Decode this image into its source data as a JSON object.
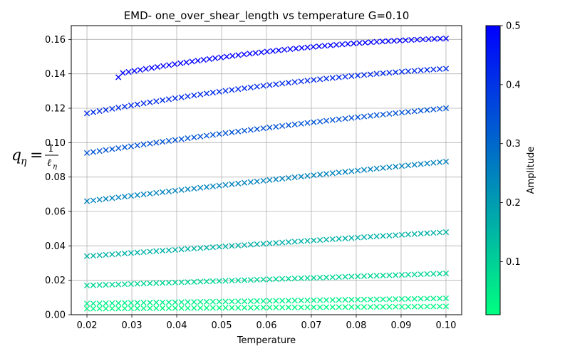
{
  "chart_data": {
    "type": "scatter",
    "title": "EMD- one_over_shear_length vs temperature G=0.10",
    "xlabel": "Temperature",
    "ylabel": {
      "main": "q",
      "sub": "η",
      "eq": "=",
      "num": "1",
      "den": "ℓ",
      "den_sub": "η"
    },
    "xlim": [
      0.0165,
      0.1035
    ],
    "ylim": [
      0.0,
      0.168
    ],
    "xticks": [
      0.02,
      0.03,
      0.04,
      0.05,
      0.06,
      0.07,
      0.08,
      0.09,
      0.1
    ],
    "xtick_labels": [
      "0.02",
      "0.03",
      "0.04",
      "0.05",
      "0.06",
      "0.07",
      "0.08",
      "0.09",
      "0.10"
    ],
    "yticks": [
      0.0,
      0.02,
      0.04,
      0.06,
      0.08,
      0.1,
      0.12,
      0.14,
      0.16
    ],
    "ytick_labels": [
      "0.00",
      "0.02",
      "0.04",
      "0.06",
      "0.08",
      "0.10",
      "0.12",
      "0.14",
      "0.16"
    ],
    "grid": true,
    "marker": "x",
    "points_per_series": 58,
    "colorbar": {
      "label": "Amplitude",
      "range": [
        0.01,
        0.5
      ],
      "ticks": [
        0.1,
        0.2,
        0.3,
        0.4,
        0.5
      ],
      "tick_labels": [
        "0.1",
        "0.2",
        "0.3",
        "0.4",
        "0.5"
      ],
      "colormap": "winter_r",
      "color_low": "#00ff80",
      "color_high": "#0000ff"
    },
    "series": [
      {
        "amplitude": 0.5,
        "x_start": 0.027,
        "x_end": 0.1,
        "y_start": 0.138,
        "y_end": 0.1605,
        "curve": 0.35,
        "first_point": [
          0.027,
          0.138
        ],
        "second_point": [
          0.028,
          0.1405
        ]
      },
      {
        "amplitude": 0.42,
        "x_start": 0.02,
        "x_end": 0.1,
        "y_start": 0.117,
        "y_end": 0.143,
        "curve": 0.25
      },
      {
        "amplitude": 0.34,
        "x_start": 0.02,
        "x_end": 0.1,
        "y_start": 0.094,
        "y_end": 0.12,
        "curve": 0.12
      },
      {
        "amplitude": 0.25,
        "x_start": 0.02,
        "x_end": 0.1,
        "y_start": 0.066,
        "y_end": 0.089,
        "curve": 0.05
      },
      {
        "amplitude": 0.16,
        "x_start": 0.02,
        "x_end": 0.1,
        "y_start": 0.034,
        "y_end": 0.048,
        "curve": 0.05
      },
      {
        "amplitude": 0.09,
        "x_start": 0.02,
        "x_end": 0.1,
        "y_start": 0.017,
        "y_end": 0.024,
        "curve": 0.0
      },
      {
        "amplitude": 0.04,
        "x_start": 0.02,
        "x_end": 0.1,
        "y_start": 0.0065,
        "y_end": 0.0095,
        "curve": 0.0
      },
      {
        "amplitude": 0.02,
        "x_start": 0.02,
        "x_end": 0.1,
        "y_start": 0.0035,
        "y_end": 0.0048,
        "curve": 0.0
      }
    ]
  }
}
